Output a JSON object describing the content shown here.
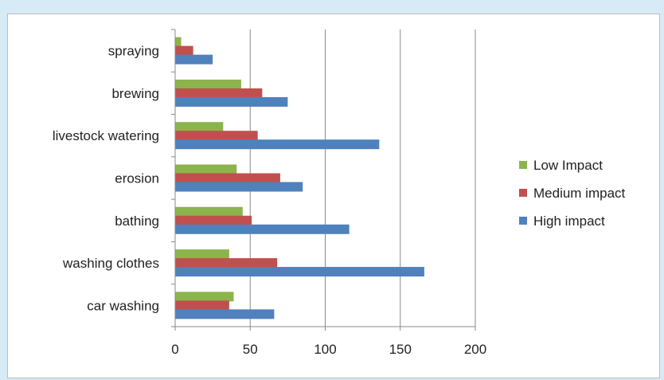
{
  "chart_data": {
    "type": "bar",
    "orientation": "horizontal",
    "title": "",
    "xlabel": "",
    "ylabel": "",
    "categories": [
      "car washing",
      "washing clothes",
      "bathing",
      "erosion",
      "livestock watering",
      "brewing",
      "spraying"
    ],
    "series": [
      {
        "name": "Low Impact",
        "color": "#8cb44c",
        "values": [
          39,
          36,
          45,
          41,
          32,
          44,
          4
        ]
      },
      {
        "name": "Medium impact",
        "color": "#c0504d",
        "values": [
          36,
          68,
          51,
          70,
          55,
          58,
          12
        ]
      },
      {
        "name": "High impact",
        "color": "#4f81bd",
        "values": [
          66,
          166,
          116,
          85,
          136,
          75,
          25
        ]
      }
    ],
    "xlim": [
      0,
      200
    ],
    "xticks": [
      0,
      50,
      100,
      150,
      200
    ],
    "grid": true,
    "legend_position": "right"
  }
}
